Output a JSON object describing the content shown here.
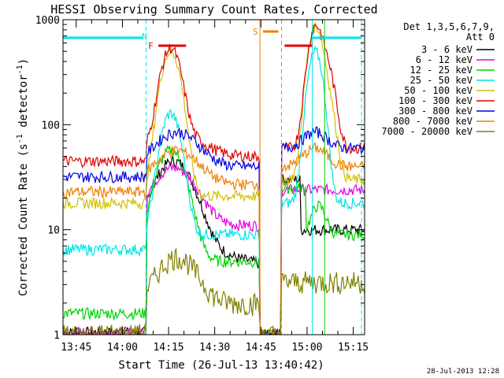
{
  "chart_data": {
    "type": "line",
    "title": "HESSI Observing Summary Count Rates, Corrected",
    "xlabel": "Start Time (26-Jul-13 13:40:42)",
    "ylabel_main": "Corrected Count Rate (s",
    "ylabel_sup1": "-1",
    "ylabel_mid": " detector",
    "ylabel_sup2": "-1",
    "ylabel_end": ")",
    "y_scale": "log",
    "ylim": [
      1,
      1000
    ],
    "xlim_minutes": [
      0,
      98
    ],
    "x_ticks": [
      "13:45",
      "14:00",
      "14:15",
      "14:30",
      "14:45",
      "15:00",
      "15:15"
    ],
    "x_tick_minutes": [
      4.3,
      19.3,
      34.3,
      49.3,
      64.3,
      79.3,
      94.3
    ],
    "y_ticks": [
      "1",
      "10",
      "100",
      "1000"
    ],
    "y_tick_values": [
      1,
      10,
      100,
      1000
    ],
    "legend_title": "Det 1,3,5,6,7,9,",
    "legend_att": "Att 0",
    "footer": "28-Jul-2013 12:28",
    "flags": [
      {
        "label": "N",
        "color": "#00e5e5"
      },
      {
        "label": "F",
        "color": "#e00000"
      },
      {
        "label": "S",
        "color": "#f08000"
      }
    ],
    "series": [
      {
        "name": "3 - 6 keV",
        "color": "#000000"
      },
      {
        "name": "6 - 12 keV",
        "color": "#e000e0"
      },
      {
        "name": "12 - 25 keV",
        "color": "#00d000"
      },
      {
        "name": "25 - 50 keV",
        "color": "#00e5e5"
      },
      {
        "name": "50 - 100 keV",
        "color": "#d0c000"
      },
      {
        "name": "100 - 300 keV",
        "color": "#e00000"
      },
      {
        "name": "300 - 800 keV",
        "color": "#0000e0"
      },
      {
        "name": "800 - 7000 keV",
        "color": "#f08000"
      },
      {
        "name": "7000 - 20000 keV",
        "color": "#808000"
      }
    ]
  }
}
